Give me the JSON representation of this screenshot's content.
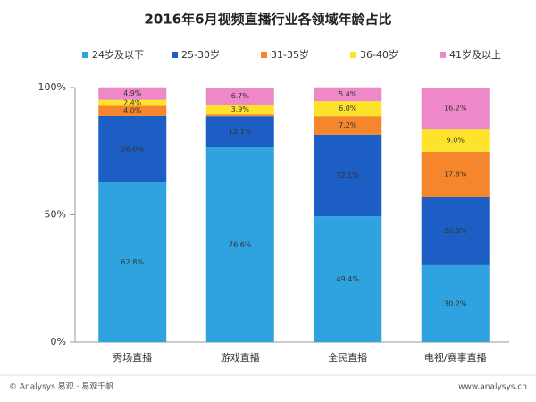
{
  "chart_data": {
    "type": "stacked_bar",
    "title": "2016年6月视频直播行业各领域年龄占比",
    "categories": [
      "秀场直播",
      "游戏直播",
      "全民直播",
      "电视/赛事直播"
    ],
    "series": [
      {
        "name": "24岁及以下",
        "color": "#2fa3e0",
        "values": [
          62.8,
          76.6,
          49.4,
          30.2
        ],
        "value_labels": [
          "62.8%",
          "76.6%",
          "49.4%",
          "30.2%"
        ]
      },
      {
        "name": "25-30岁",
        "color": "#1c5ec4",
        "values": [
          26.0,
          12.1,
          32.1,
          26.8
        ],
        "value_labels": [
          "26.0%",
          "12.1%",
          "32.1%",
          "26.8%"
        ]
      },
      {
        "name": "31-35岁",
        "color": "#f5862b",
        "values": [
          4.0,
          0.7,
          7.2,
          17.8
        ],
        "value_labels": [
          "4.0%",
          null,
          "7.2%",
          "17.8%"
        ]
      },
      {
        "name": "36-40岁",
        "color": "#fde32c",
        "values": [
          2.4,
          3.9,
          6.0,
          9.0
        ],
        "value_labels": [
          "2.4%",
          "3.9%",
          "6.0%",
          "9.0%"
        ]
      },
      {
        "name": "41岁及以上",
        "color": "#ee88c8",
        "values": [
          4.9,
          6.7,
          5.4,
          16.2
        ],
        "value_labels": [
          "4.9%",
          "6.7%",
          "5.4%",
          "16.2%"
        ]
      }
    ],
    "ylim": [
      0,
      100
    ],
    "yticks": [
      {
        "value": 0,
        "label": "0%"
      },
      {
        "value": 50,
        "label": "50%"
      },
      {
        "value": 100,
        "label": "100%"
      }
    ],
    "footer_left": "© Analysys 易观 · 易观千帆",
    "footer_right": "www.analysys.cn"
  }
}
